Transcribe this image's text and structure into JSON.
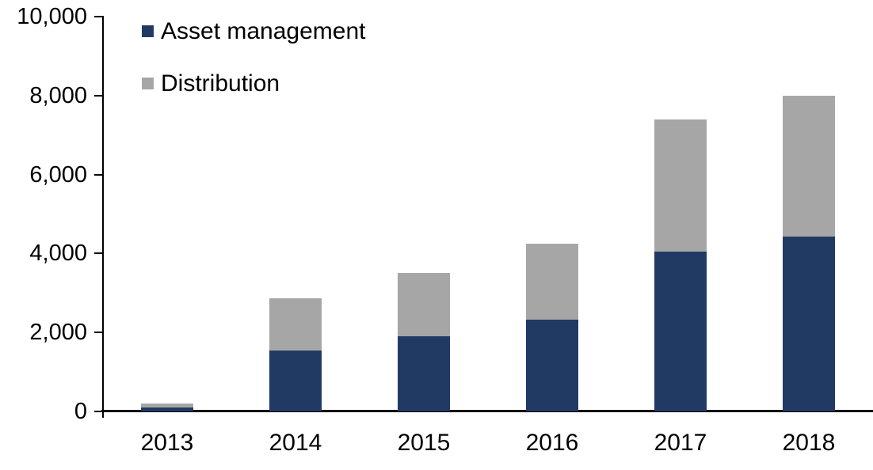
{
  "chart_data": {
    "type": "bar",
    "stacked": true,
    "title": "",
    "xlabel": "",
    "ylabel": "",
    "categories": [
      "2013",
      "2014",
      "2015",
      "2016",
      "2017",
      "2018"
    ],
    "series": [
      {
        "name": "Asset management",
        "color": "#213a63",
        "values": [
          100,
          1550,
          1900,
          2330,
          4050,
          4430
        ]
      },
      {
        "name": "Distribution",
        "color": "#a6a6a6",
        "values": [
          100,
          1320,
          1600,
          1920,
          3350,
          3570
        ]
      }
    ],
    "ylim": [
      0,
      10000
    ],
    "yticks": [
      {
        "value": 0,
        "label": "0"
      },
      {
        "value": 2000,
        "label": "2,000"
      },
      {
        "value": 4000,
        "label": "4,000"
      },
      {
        "value": 6000,
        "label": "6,000"
      },
      {
        "value": 8000,
        "label": "8,000"
      },
      {
        "value": 10000,
        "label": "10,000"
      }
    ],
    "grid": false,
    "legend_position": "top-left",
    "axis_color": "#000000",
    "background_color": "#ffffff"
  }
}
